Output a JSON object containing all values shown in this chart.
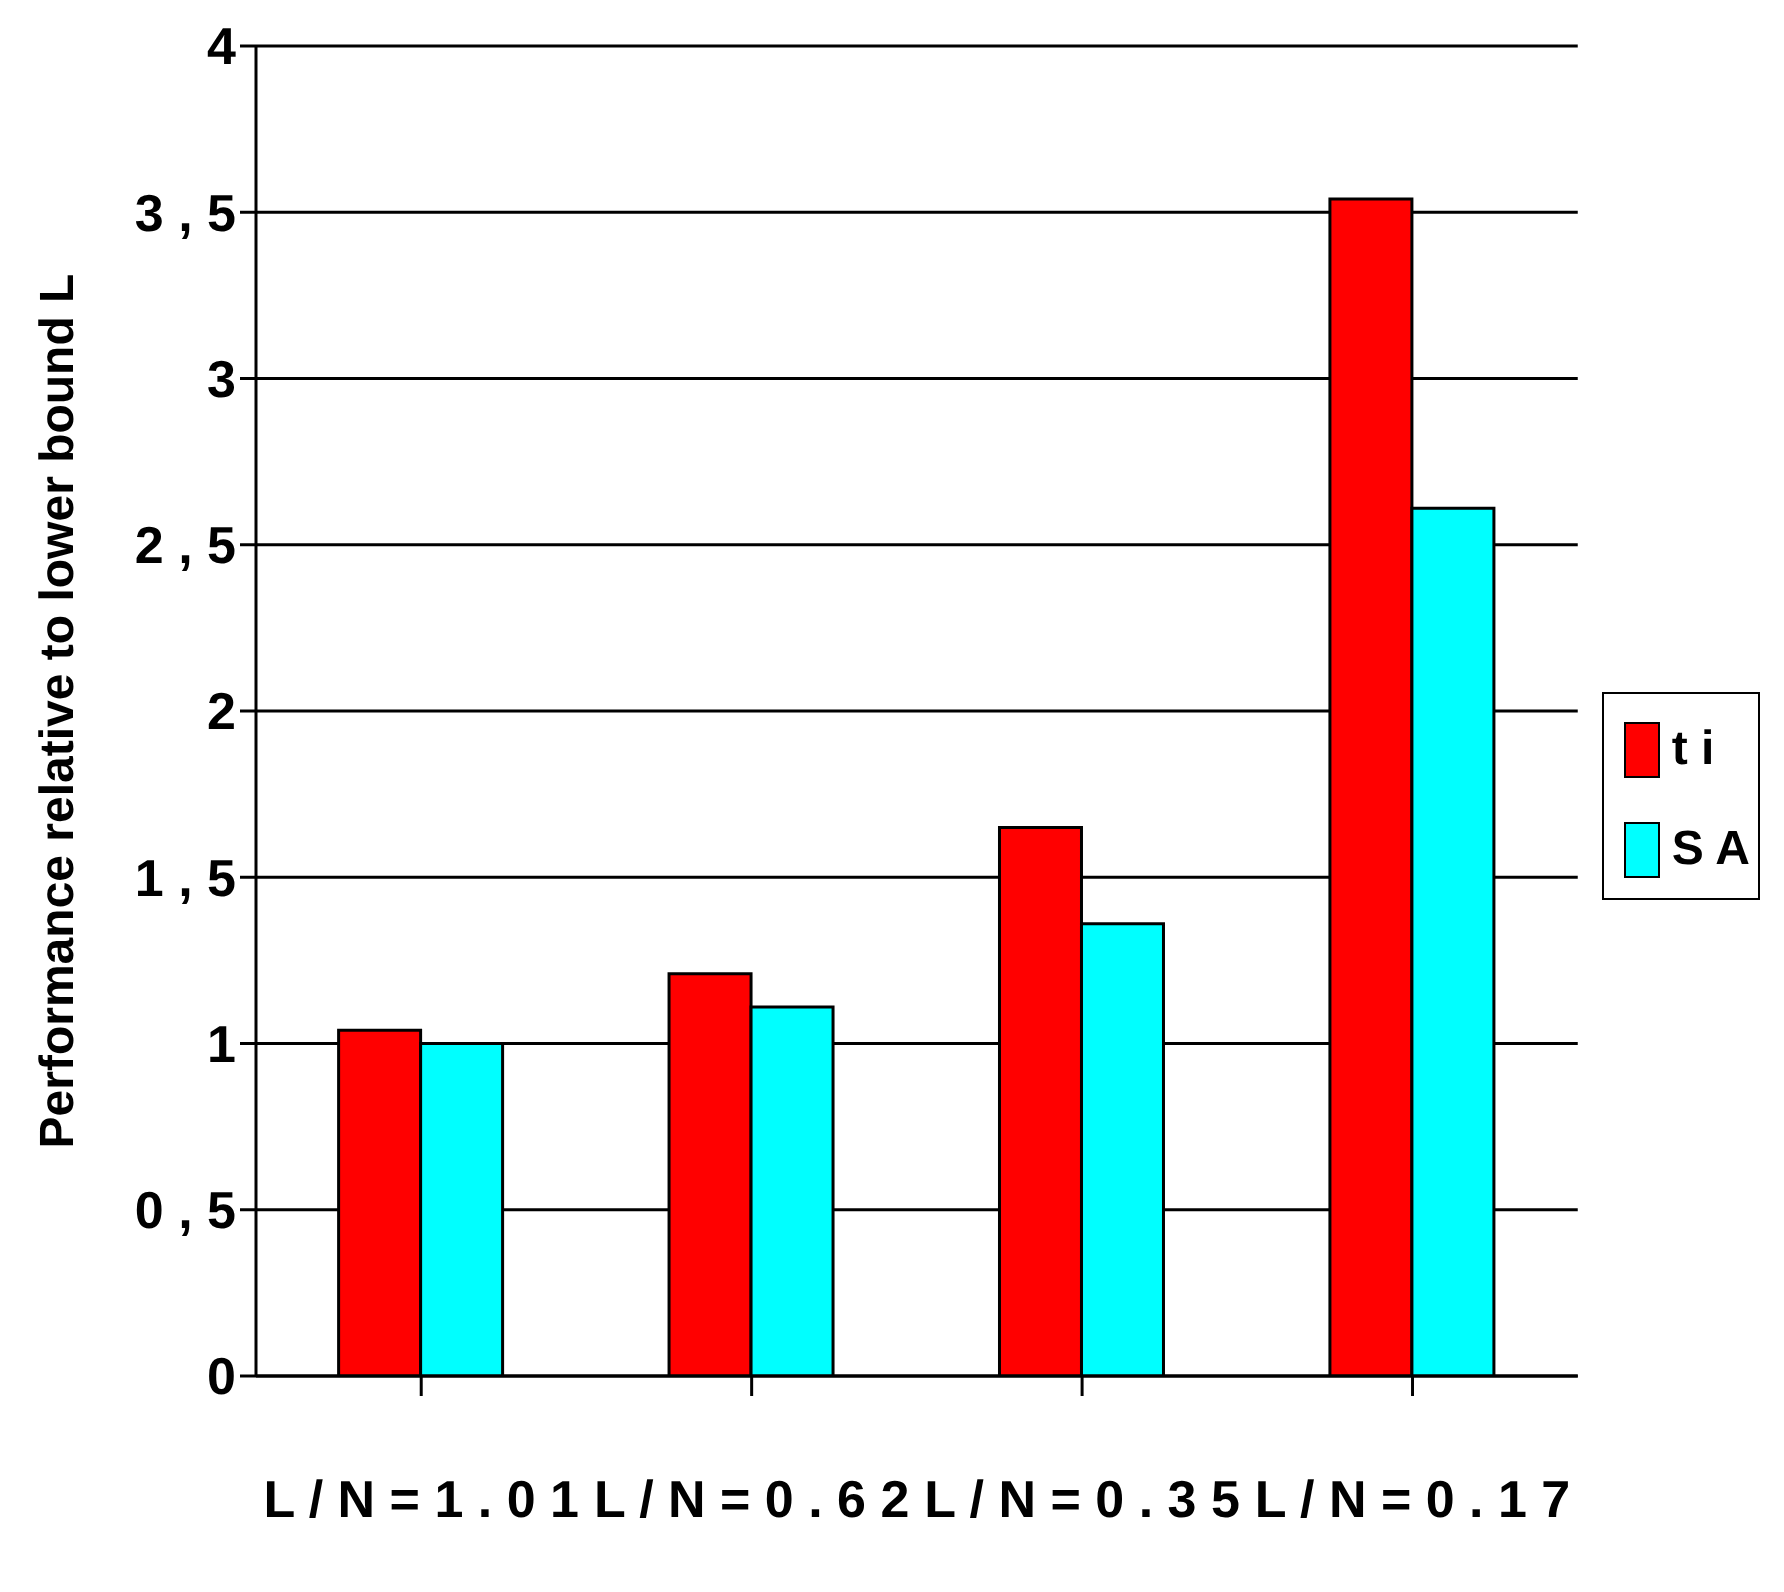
{
  "chart_data": {
    "type": "bar",
    "ylabel": "Performance relative to lower bound L",
    "categories": [
      "L / N = 1 . 0 1",
      "L / N = 0 . 6 2",
      "L / N = 0 . 3 5",
      "L / N = 0 . 1 7"
    ],
    "series": [
      {
        "name": "t i",
        "color": "#ff0000",
        "values": [
          1.04,
          1.21,
          1.65,
          3.54
        ]
      },
      {
        "name": "S A",
        "color": "#00ffff",
        "values": [
          1.0,
          1.11,
          1.36,
          2.61
        ]
      }
    ],
    "ylim": [
      0,
      4
    ],
    "yticks": [
      0,
      {
        "value": 0.5,
        "label": "0 , 5"
      },
      1,
      {
        "value": 1.5,
        "label": "1 , 5"
      },
      2,
      {
        "value": 2.5,
        "label": "2 , 5"
      },
      3,
      {
        "value": 3.5,
        "label": "3 , 5"
      },
      4
    ],
    "grid": "y",
    "legend": "right"
  }
}
